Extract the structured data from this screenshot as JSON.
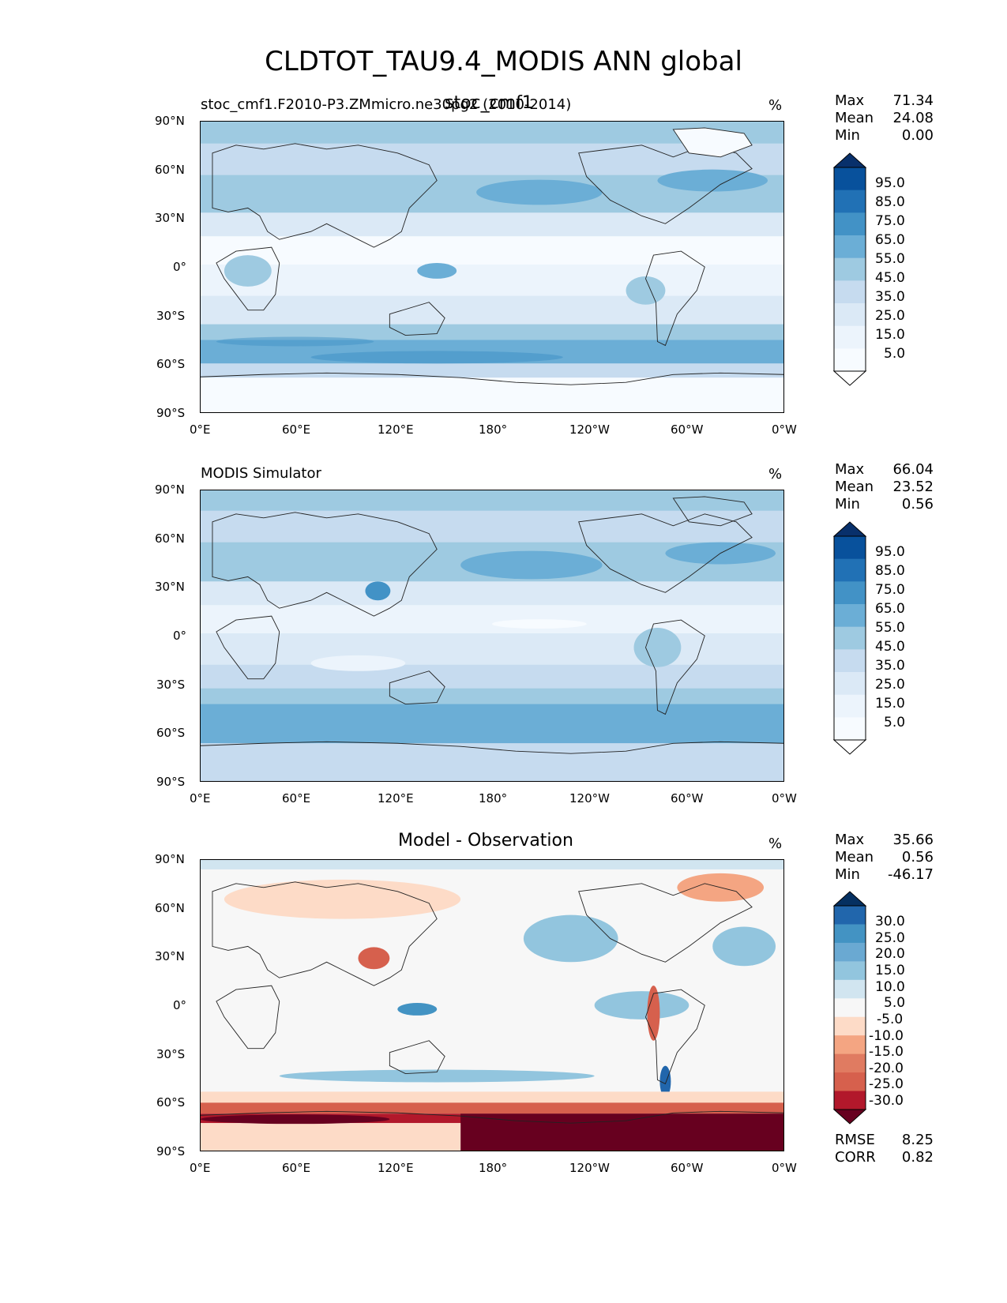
{
  "figure_title": "CLDTOT_TAU9.4_MODIS ANN global",
  "lat_ticks": [
    "90°N",
    "60°N",
    "30°N",
    "0°",
    "30°S",
    "60°S",
    "90°S"
  ],
  "lon_ticks": [
    "0°E",
    "60°E",
    "120°E",
    "180°",
    "120°W",
    "60°W",
    "0°W"
  ],
  "panels": [
    {
      "title_left": "stoc_cmf1.F2010-P3.ZMmicro.ne30pg2 (2010-2014)",
      "title_center": "stoc_cmf1",
      "unit": "%",
      "stats": [
        {
          "label": "Max",
          "value": "71.34"
        },
        {
          "label": "Mean",
          "value": "24.08"
        },
        {
          "label": "Min",
          "value": "0.00"
        }
      ],
      "colorbar": {
        "labels": [
          "95.0",
          "85.0",
          "75.0",
          "65.0",
          "55.0",
          "45.0",
          "35.0",
          "25.0",
          "15.0",
          "5.0"
        ],
        "colors": [
          "#08306b",
          "#08519c",
          "#2171b5",
          "#4292c6",
          "#6baed6",
          "#9ecae1",
          "#c6dbef",
          "#dbe9f6",
          "#ecf4fc",
          "#f7fbff",
          "#ffffff"
        ]
      }
    },
    {
      "title_left": "MODIS Simulator",
      "title_center": "",
      "unit": "%",
      "stats": [
        {
          "label": "Max",
          "value": "66.04"
        },
        {
          "label": "Mean",
          "value": "23.52"
        },
        {
          "label": "Min",
          "value": "0.56"
        }
      ],
      "colorbar": {
        "labels": [
          "95.0",
          "85.0",
          "75.0",
          "65.0",
          "55.0",
          "45.0",
          "35.0",
          "25.0",
          "15.0",
          "5.0"
        ],
        "colors": [
          "#08306b",
          "#08519c",
          "#2171b5",
          "#4292c6",
          "#6baed6",
          "#9ecae1",
          "#c6dbef",
          "#dbe9f6",
          "#ecf4fc",
          "#f7fbff",
          "#ffffff"
        ]
      }
    },
    {
      "title_left": "",
      "title_center": "Model - Observation",
      "unit": "%",
      "stats": [
        {
          "label": "Max",
          "value": "35.66"
        },
        {
          "label": "Mean",
          "value": "0.56"
        },
        {
          "label": "Min",
          "value": "-46.17"
        }
      ],
      "bottom_stats": [
        {
          "label": "RMSE",
          "value": "8.25"
        },
        {
          "label": "CORR",
          "value": "0.82"
        }
      ],
      "colorbar": {
        "labels": [
          "30.0",
          "25.0",
          "20.0",
          "15.0",
          "10.0",
          "5.0",
          "-5.0",
          "-10.0",
          "-15.0",
          "-20.0",
          "-25.0",
          "-30.0"
        ],
        "colors": [
          "#053061",
          "#2166ac",
          "#4393c3",
          "#6aa9d2",
          "#92c5de",
          "#d1e5f0",
          "#f7f7f7",
          "#fddbc7",
          "#f4a582",
          "#e07b61",
          "#d6604d",
          "#b2182b",
          "#67001f"
        ]
      }
    }
  ],
  "chart_data": [
    {
      "type": "heatmap",
      "title": "stoc_cmf1",
      "subtitle": "stoc_cmf1.F2010-P3.ZMmicro.ne30pg2 (2010-2014)",
      "units": "%",
      "x_ticks": [
        "0°E",
        "60°E",
        "120°E",
        "180°",
        "120°W",
        "60°W",
        "0°W"
      ],
      "y_ticks": [
        "90°N",
        "60°N",
        "30°N",
        "0°",
        "30°S",
        "60°S",
        "90°S"
      ],
      "levels": [
        5,
        15,
        25,
        35,
        45,
        55,
        65,
        75,
        85,
        95
      ],
      "max": 71.34,
      "mean": 24.08,
      "min": 0.0,
      "zonal_profile": [
        {
          "lat": 85,
          "value": 40
        },
        {
          "lat": 70,
          "value": 33
        },
        {
          "lat": 55,
          "value": 38
        },
        {
          "lat": 40,
          "value": 24
        },
        {
          "lat": 25,
          "value": 8
        },
        {
          "lat": 10,
          "value": 14
        },
        {
          "lat": 0,
          "value": 18
        },
        {
          "lat": -15,
          "value": 15
        },
        {
          "lat": -30,
          "value": 17
        },
        {
          "lat": -45,
          "value": 42
        },
        {
          "lat": -55,
          "value": 46
        },
        {
          "lat": -65,
          "value": 22
        },
        {
          "lat": -80,
          "value": 3
        }
      ]
    },
    {
      "type": "heatmap",
      "title": "MODIS Simulator",
      "units": "%",
      "x_ticks": [
        "0°E",
        "60°E",
        "120°E",
        "180°",
        "120°W",
        "60°W",
        "0°W"
      ],
      "y_ticks": [
        "90°N",
        "60°N",
        "30°N",
        "0°",
        "30°S",
        "60°S",
        "90°S"
      ],
      "levels": [
        5,
        15,
        25,
        35,
        45,
        55,
        65,
        75,
        85,
        95
      ],
      "max": 66.04,
      "mean": 23.52,
      "min": 0.56,
      "zonal_profile": [
        {
          "lat": 85,
          "value": 36
        },
        {
          "lat": 70,
          "value": 30
        },
        {
          "lat": 55,
          "value": 40
        },
        {
          "lat": 40,
          "value": 28
        },
        {
          "lat": 25,
          "value": 12
        },
        {
          "lat": 10,
          "value": 14
        },
        {
          "lat": 0,
          "value": 17
        },
        {
          "lat": -15,
          "value": 18
        },
        {
          "lat": -30,
          "value": 22
        },
        {
          "lat": -45,
          "value": 44
        },
        {
          "lat": -55,
          "value": 48
        },
        {
          "lat": -65,
          "value": 40
        },
        {
          "lat": -80,
          "value": 20
        }
      ]
    },
    {
      "type": "heatmap",
      "title": "Model - Observation",
      "units": "%",
      "x_ticks": [
        "0°E",
        "60°E",
        "120°E",
        "180°",
        "120°W",
        "60°W",
        "0°W"
      ],
      "y_ticks": [
        "90°N",
        "60°N",
        "30°N",
        "0°",
        "30°S",
        "60°S",
        "90°S"
      ],
      "levels": [
        -30,
        -25,
        -20,
        -15,
        -10,
        -5,
        5,
        10,
        15,
        20,
        25,
        30
      ],
      "max": 35.66,
      "mean": 0.56,
      "min": -46.17,
      "rmse": 8.25,
      "corr": 0.82,
      "zonal_profile": [
        {
          "lat": 85,
          "value": 2
        },
        {
          "lat": 70,
          "value": -4
        },
        {
          "lat": 55,
          "value": -3
        },
        {
          "lat": 40,
          "value": -2
        },
        {
          "lat": 25,
          "value": -3
        },
        {
          "lat": 10,
          "value": 1
        },
        {
          "lat": 0,
          "value": 2
        },
        {
          "lat": -15,
          "value": -2
        },
        {
          "lat": -30,
          "value": -4
        },
        {
          "lat": -45,
          "value": -2
        },
        {
          "lat": -55,
          "value": -3
        },
        {
          "lat": -65,
          "value": -18
        },
        {
          "lat": -80,
          "value": -15
        }
      ]
    }
  ]
}
